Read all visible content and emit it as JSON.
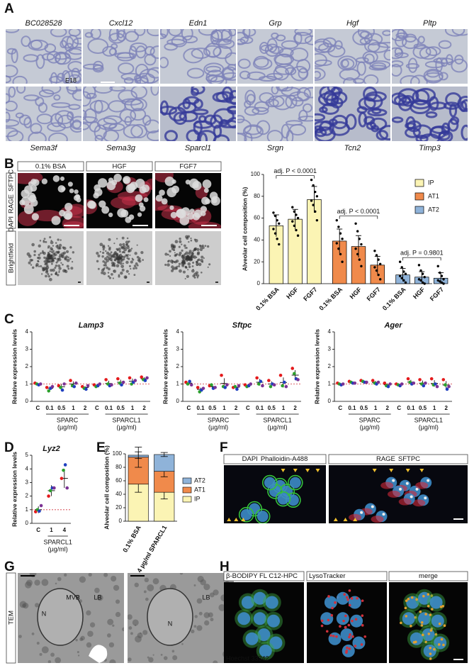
{
  "panels": {
    "A": {
      "label": "A",
      "genes": [
        "BC028528",
        "Cxcl12",
        "Edn1",
        "Grp",
        "Hgf",
        "Pltp",
        "Sema3f",
        "Sema3g",
        "Sparcl1",
        "Srgn",
        "Tcn2",
        "Timp3"
      ],
      "stage": "E18"
    },
    "B": {
      "label": "B",
      "conditions": [
        "0.1% BSA",
        "HGF",
        "FGF7"
      ],
      "channels": [
        "DAPI",
        "RAGE",
        "SFTPC"
      ],
      "brightfield": "Brightfield"
    },
    "C": {
      "label": "C"
    },
    "D": {
      "label": "D"
    },
    "E": {
      "label": "E"
    },
    "F": {
      "label": "F",
      "left": [
        "DAPI",
        "Phalloidin-A488"
      ],
      "right": [
        "RAGE",
        "SFTPC"
      ]
    },
    "G": {
      "label": "G",
      "method": "TEM",
      "annotations": [
        "N",
        "MVB",
        "LB",
        "N",
        "LB"
      ]
    },
    "H": {
      "label": "H",
      "headers": [
        "β-BODIPY FL C12-HPC",
        "LysoTracker",
        "merge"
      ],
      "stain": "Hoechst 33342"
    }
  },
  "chart_data": [
    {
      "type": "bar",
      "y_label": "Alveolar cell composition (%)",
      "categories": [
        "0.1% BSA",
        "HGF",
        "FGF7"
      ],
      "series": [
        {
          "name": "IP",
          "color": "#fbf4b4",
          "values": [
            53,
            59,
            77
          ],
          "errors": [
            10,
            9,
            12
          ],
          "points": [
            [
              65,
              62,
              58,
              55,
              50,
              46,
              41,
              36
            ],
            [
              70,
              66,
              63,
              60,
              57,
              53,
              49,
              44
            ],
            [
              95,
              90,
              84,
              80,
              76,
              72,
              66,
              58
            ]
          ]
        },
        {
          "name": "AT1",
          "color": "#f08a4b",
          "values": [
            39,
            34,
            17
          ],
          "errors": [
            11,
            10,
            8
          ],
          "points": [
            [
              58,
              52,
              46,
              41,
              37,
              32,
              27,
              20
            ],
            [
              55,
              48,
              41,
              36,
              32,
              27,
              22,
              16
            ],
            [
              30,
              26,
              22,
              18,
              15,
              12,
              8,
              4
            ]
          ]
        },
        {
          "name": "AT2",
          "color": "#8fb3d9",
          "values": [
            8,
            6,
            5
          ],
          "errors": [
            6,
            5,
            5
          ],
          "points": [
            [
              20,
              15,
              11,
              9,
              7,
              5,
              3,
              1
            ],
            [
              17,
              12,
              9,
              6,
              4,
              3,
              1,
              0
            ],
            [
              16,
              10,
              7,
              4,
              3,
              2,
              1,
              0
            ]
          ]
        }
      ],
      "annotations": [
        "adj. P < 0.0001",
        "adj. P < 0.0001",
        "adj. P = 0.9801"
      ],
      "ylim": [
        0,
        100
      ],
      "yticks": [
        0,
        20,
        40,
        60,
        80,
        100
      ],
      "legend": "upper right"
    },
    {
      "type": "dot",
      "title": "Lamp3",
      "y_label": "Relative expression levels",
      "categories": [
        "C",
        "0.1",
        "0.5",
        "1",
        "2",
        "C",
        "0.1",
        "0.5",
        "1",
        "2"
      ],
      "groups": [
        {
          "name": "SPARC",
          "unit": "(µg/ml)"
        },
        {
          "name": "SPARCL1",
          "unit": "(µg/ml)"
        }
      ],
      "values": [
        1.0,
        0.75,
        0.84,
        1.0,
        0.8,
        0.93,
        1.03,
        1.1,
        1.16,
        1.3
      ],
      "errors": [
        0.05,
        0.1,
        0.15,
        0.15,
        0.08,
        0.07,
        0.16,
        0.15,
        0.15,
        0.09
      ],
      "points": [
        [
          1.05,
          1.0,
          0.95,
          1.0
        ],
        [
          0.8,
          0.6,
          0.75,
          0.85
        ],
        [
          0.9,
          0.8,
          0.65,
          1.0
        ],
        [
          1.2,
          0.9,
          0.85,
          1.05
        ],
        [
          0.85,
          0.75,
          0.7,
          0.9
        ],
        [
          0.95,
          0.85,
          0.9,
          1.0
        ],
        [
          1.25,
          1.0,
          0.9,
          0.95
        ],
        [
          1.3,
          1.05,
          0.95,
          1.1
        ],
        [
          1.35,
          1.0,
          1.1,
          1.2
        ],
        [
          1.4,
          1.25,
          1.2,
          1.35
        ]
      ],
      "point_colors": [
        "#e41a1c",
        "#2ca02c",
        "#1f3fbf",
        "#7b3294"
      ],
      "reference": 1,
      "ylim": [
        0,
        4
      ],
      "yticks": [
        0,
        1,
        2,
        3,
        4
      ]
    },
    {
      "type": "dot",
      "title": "Sftpc",
      "y_label": "Relative expression levels",
      "categories": [
        "C",
        "0.1",
        "0.5",
        "1",
        "2",
        "C",
        "0.1",
        "0.5",
        "1",
        "2"
      ],
      "groups": [
        {
          "name": "SPARC",
          "unit": "(µg/ml)"
        },
        {
          "name": "SPARCL1",
          "unit": "(µg/ml)"
        }
      ],
      "values": [
        1.05,
        0.69,
        0.85,
        1.03,
        0.81,
        0.93,
        1.1,
        1.0,
        1.09,
        1.51
      ],
      "errors": [
        0.08,
        0.1,
        0.09,
        0.3,
        0.09,
        0.06,
        0.19,
        0.15,
        0.29,
        0.29
      ],
      "points": [
        [
          1.1,
          1.0,
          1.15,
          0.95
        ],
        [
          0.8,
          0.55,
          0.65,
          0.75
        ],
        [
          0.9,
          0.95,
          0.75,
          0.8
        ],
        [
          1.5,
          0.85,
          0.8,
          0.95
        ],
        [
          0.8,
          0.85,
          0.7,
          0.9
        ],
        [
          0.95,
          0.85,
          0.9,
          1.0
        ],
        [
          1.35,
          1.0,
          1.15,
          0.9
        ],
        [
          1.2,
          0.85,
          1.0,
          0.95
        ],
        [
          1.5,
          0.9,
          1.1,
          0.85
        ],
        [
          1.9,
          1.6,
          1.3,
          1.25
        ]
      ],
      "point_colors": [
        "#e41a1c",
        "#2ca02c",
        "#1f3fbf",
        "#7b3294"
      ],
      "reference": 1,
      "ylim": [
        0,
        4
      ],
      "yticks": [
        0,
        1,
        2,
        3,
        4
      ]
    },
    {
      "type": "dot",
      "title": "Ager",
      "y_label": "Relative expression levels",
      "categories": [
        "C",
        "0.1",
        "0.5",
        "1",
        "2",
        "C",
        "0.1",
        "0.5",
        "1",
        "2"
      ],
      "groups": [
        {
          "name": "SPARC",
          "unit": "(µg/ml)"
        },
        {
          "name": "SPARCL1",
          "unit": "(µg/ml)"
        }
      ],
      "values": [
        1.0,
        1.09,
        1.14,
        1.09,
        0.95,
        0.96,
        1.11,
        1.05,
        1.03,
        0.94
      ],
      "errors": [
        0.04,
        0.05,
        0.05,
        0.09,
        0.09,
        0.05,
        0.13,
        0.15,
        0.19,
        0.23
      ],
      "points": [
        [
          1.05,
          1.0,
          0.95,
          1.0
        ],
        [
          1.15,
          1.1,
          1.05,
          1.05
        ],
        [
          1.2,
          1.15,
          1.1,
          1.1
        ],
        [
          1.2,
          1.05,
          1.0,
          1.1
        ],
        [
          1.05,
          0.9,
          0.85,
          1.0
        ],
        [
          1.0,
          0.95,
          0.9,
          1.0
        ],
        [
          1.3,
          1.1,
          1.0,
          1.05
        ],
        [
          1.25,
          1.0,
          0.9,
          1.05
        ],
        [
          1.3,
          0.95,
          1.0,
          0.85
        ],
        [
          1.25,
          0.95,
          0.7,
          0.85
        ]
      ],
      "point_colors": [
        "#e41a1c",
        "#2ca02c",
        "#1f3fbf",
        "#7b3294"
      ],
      "reference": 1,
      "ylim": [
        0,
        4
      ],
      "yticks": [
        0,
        1,
        2,
        3,
        4
      ]
    },
    {
      "type": "dot",
      "title": "Lyz2",
      "y_label": "Relative expression levels",
      "categories": [
        "C",
        "1",
        "4"
      ],
      "groups": [
        {
          "name": "SPARCL1",
          "unit": "(µg/ml)"
        }
      ],
      "values": [
        1.0,
        2.4,
        3.3
      ],
      "errors": [
        0.25,
        0.4,
        0.7
      ],
      "points": [
        [
          0.85,
          1.0,
          0.9,
          1.3
        ],
        [
          2.0,
          2.4,
          2.6,
          2.6
        ],
        [
          3.3,
          3.9,
          4.3,
          2.6
        ]
      ],
      "point_colors": [
        "#e41a1c",
        "#2ca02c",
        "#1f3fbf",
        "#7b3294"
      ],
      "reference": 1,
      "ylim": [
        0,
        5
      ],
      "yticks": [
        0,
        1,
        2,
        3,
        4,
        5
      ]
    },
    {
      "type": "stacked_bar",
      "y_label": "Alveolar cell composition (%)",
      "categories": [
        "0.1% BSA",
        "4 µg/ml SPARCL1"
      ],
      "series": [
        {
          "name": "IP",
          "color": "#fbf4b4",
          "values": [
            55,
            43
          ],
          "errors": [
            12,
            10
          ]
        },
        {
          "name": "AT1",
          "color": "#f08a4b",
          "values": [
            40,
            31
          ],
          "errors": [
            15,
            8
          ]
        },
        {
          "name": "AT2",
          "color": "#8fb3d9",
          "values": [
            3,
            25
          ],
          "errors": [
            5,
            3
          ]
        }
      ],
      "ylim": [
        0,
        100
      ],
      "yticks": [
        0,
        20,
        40,
        60,
        80,
        100
      ],
      "legend": "right"
    }
  ]
}
